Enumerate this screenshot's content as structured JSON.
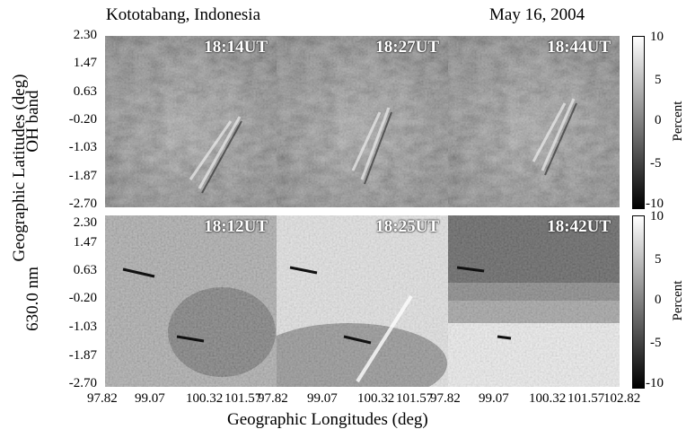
{
  "header": {
    "location": "Kototabang, Indonesia",
    "date": "May 16, 2004"
  },
  "y_ticks": [
    "2.30",
    "1.47",
    "0.63",
    "-0.20",
    "-1.03",
    "-1.87",
    "-2.70"
  ],
  "x_ticks": [
    "97.82",
    "99.07",
    "100.32",
    "101.57",
    "97.82",
    "99.07",
    "100.32",
    "101.57",
    "97.82",
    "99.07",
    "100.32",
    "101.57",
    "102.82"
  ],
  "y_axis_label": "Geographic Latitudes (deg)",
  "x_axis_label": "Geographic Longitudes (deg)",
  "rows": [
    {
      "band": "OH band",
      "times": [
        "18:14UT",
        "18:27UT",
        "18:44UT"
      ]
    },
    {
      "band": "630.0 nm",
      "times": [
        "18:12UT",
        "18:25UT",
        "18:42UT"
      ]
    }
  ],
  "colorbar": {
    "label": "Percent",
    "ticks": [
      "10",
      "5",
      "0",
      "-5",
      "-10"
    ],
    "range": [
      -10,
      10
    ],
    "colors": {
      "high": "#ffffff",
      "low": "#000000"
    }
  }
}
